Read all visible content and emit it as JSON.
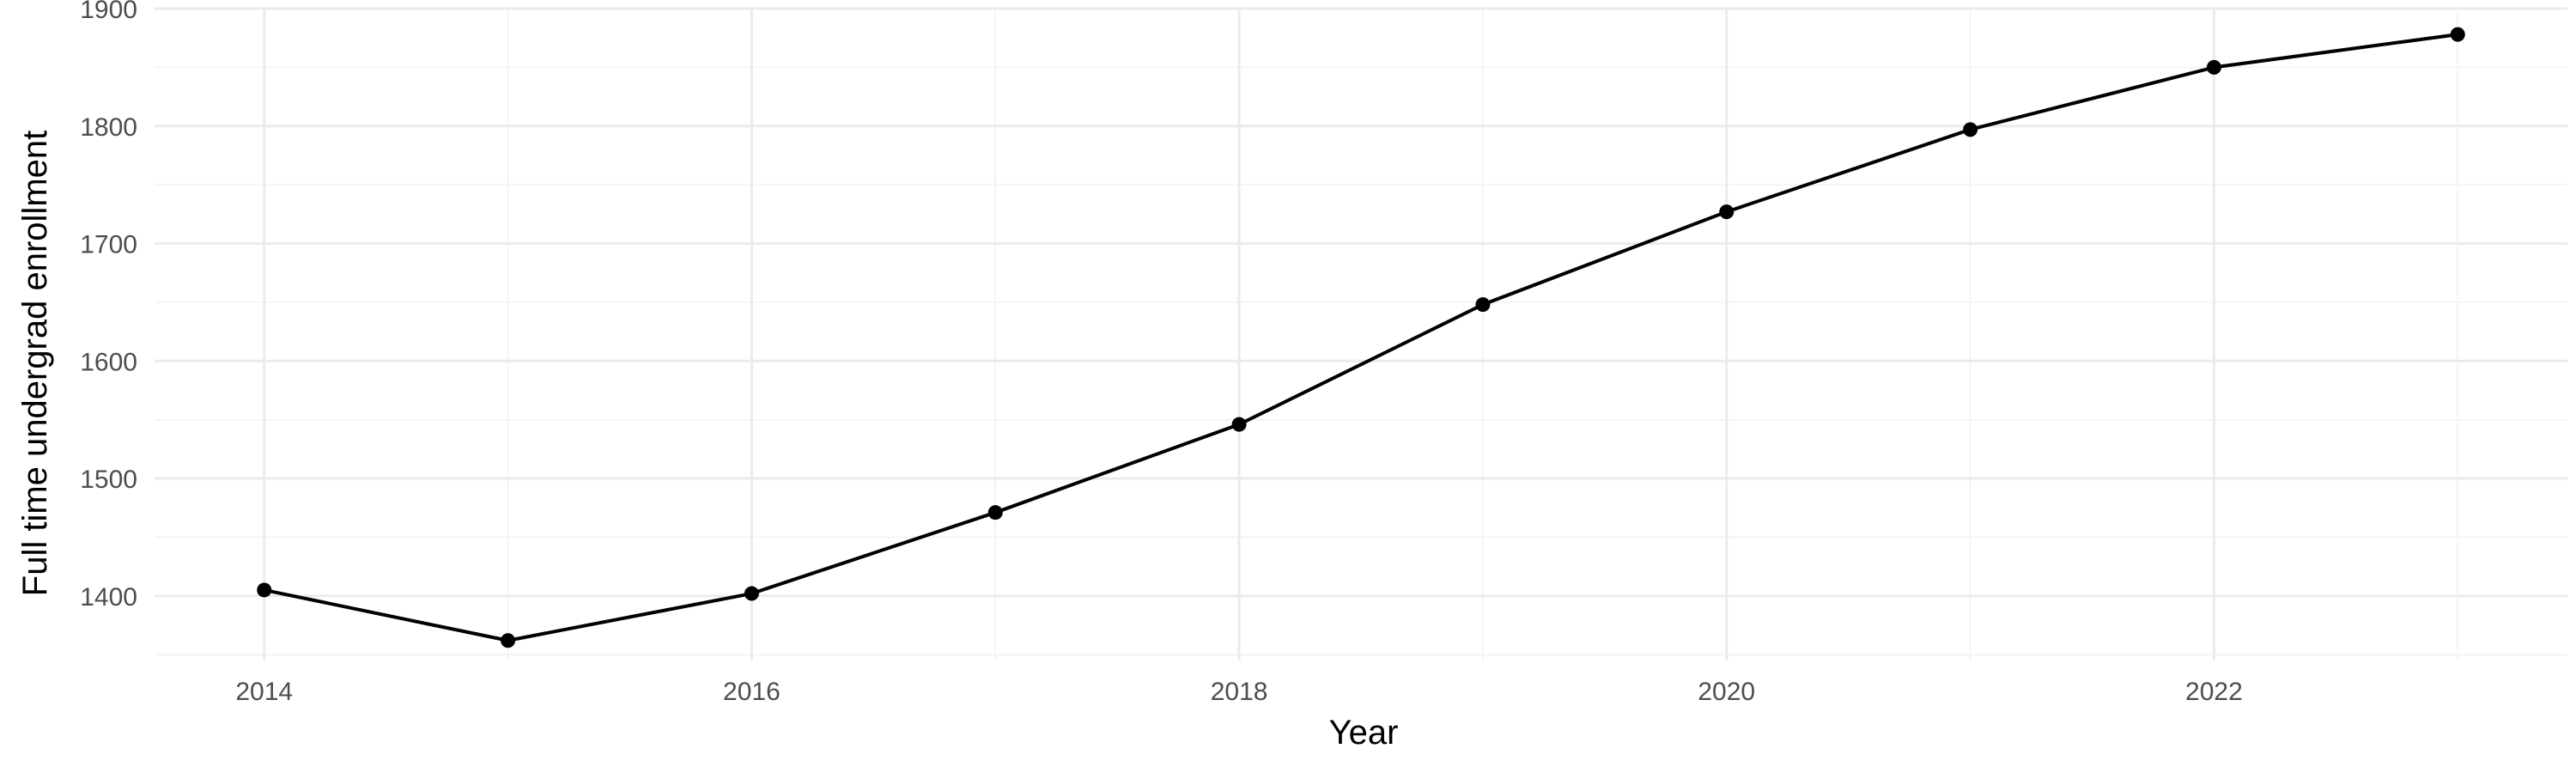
{
  "chart_data": {
    "type": "line",
    "title": "",
    "xlabel": "Year",
    "ylabel": "Full time undergrad enrollment",
    "x": [
      2014,
      2015,
      2016,
      2017,
      2018,
      2019,
      2020,
      2021,
      2022,
      2023
    ],
    "series": [
      {
        "values": [
          1405,
          1362,
          1402,
          1471,
          1546,
          1648,
          1727,
          1797,
          1850,
          1878
        ]
      }
    ],
    "xlim": [
      2013.55,
      2023.45
    ],
    "ylim": [
      1345,
      1900
    ],
    "x_ticks": [
      2014,
      2016,
      2018,
      2020,
      2022
    ],
    "y_ticks": [
      1400,
      1500,
      1600,
      1700,
      1800,
      1900
    ],
    "grid": true,
    "legend": "none",
    "colors": {
      "line": "#000000",
      "grid": "#ebebeb",
      "background": "#ffffff"
    }
  }
}
